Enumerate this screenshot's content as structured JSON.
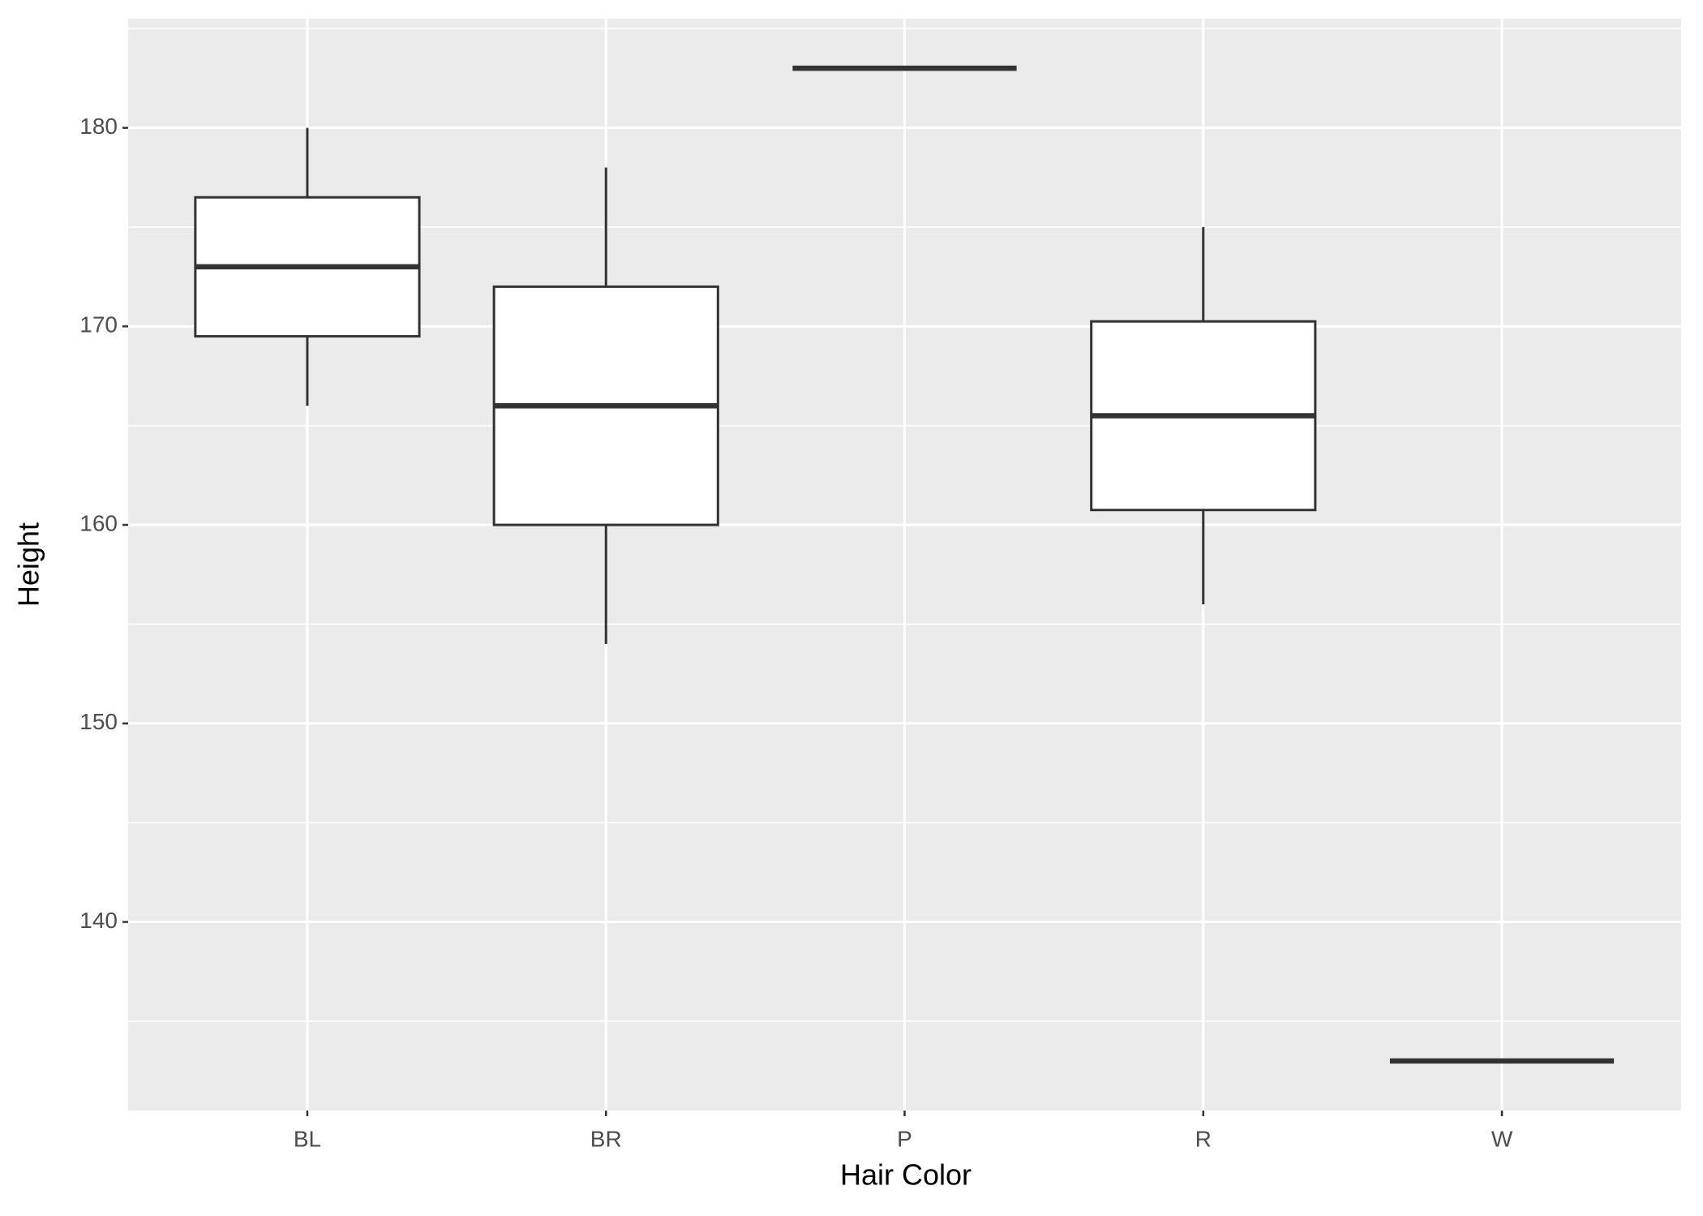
{
  "chart_data": {
    "type": "boxplot",
    "x_label": "Hair Color",
    "y_label": "Height",
    "categories": [
      "BL",
      "BR",
      "P",
      "R",
      "W"
    ],
    "boxes": [
      {
        "min": 166,
        "q1": 169.5,
        "median": 173,
        "q3": 176.5,
        "max": 180
      },
      {
        "min": 154,
        "q1": 160,
        "median": 166,
        "q3": 172,
        "max": 178
      },
      {
        "min": 183,
        "q1": 183,
        "median": 183,
        "q3": 183,
        "max": 183
      },
      {
        "min": 156,
        "q1": 160.75,
        "median": 165.5,
        "q3": 170.25,
        "max": 175
      },
      {
        "min": 133,
        "q1": 133,
        "median": 133,
        "q3": 133,
        "max": 133
      }
    ],
    "ylim": [
      130.5,
      185.5
    ],
    "yticks": [
      140,
      150,
      160,
      170,
      180
    ],
    "minor_yticks": [
      135,
      145,
      155,
      165,
      175,
      185
    ],
    "grid": true,
    "panel_color": "#EBEBEB",
    "box_fill": "#FFFFFF",
    "line_color": "#333333"
  }
}
